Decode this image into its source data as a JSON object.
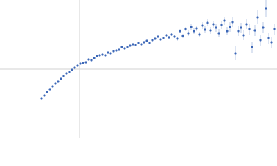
{
  "chart_data": {
    "type": "scatter",
    "color": "#3d68b8",
    "axis_color": "#d0d0d0",
    "xlim": [
      -1.15,
      2.85
    ],
    "ylim": [
      -1,
      1
    ],
    "x": [
      -0.55,
      -0.51,
      -0.47,
      -0.43,
      -0.39,
      -0.35,
      -0.31,
      -0.27,
      -0.23,
      -0.19,
      -0.15,
      -0.11,
      -0.07,
      -0.03,
      0.01,
      0.05,
      0.09,
      0.13,
      0.17,
      0.21,
      0.25,
      0.29,
      0.33,
      0.37,
      0.41,
      0.45,
      0.49,
      0.53,
      0.57,
      0.61,
      0.65,
      0.69,
      0.73,
      0.77,
      0.81,
      0.85,
      0.89,
      0.93,
      0.97,
      1.01,
      1.05,
      1.09,
      1.13,
      1.17,
      1.21,
      1.25,
      1.29,
      1.33,
      1.37,
      1.41,
      1.45,
      1.49,
      1.53,
      1.57,
      1.61,
      1.65,
      1.69,
      1.73,
      1.77,
      1.81,
      1.85,
      1.89,
      1.93,
      1.97,
      2.01,
      2.05,
      2.09,
      2.13,
      2.17,
      2.21,
      2.25,
      2.29,
      2.33,
      2.37,
      2.41,
      2.45,
      2.49,
      2.53,
      2.57,
      2.61,
      2.65,
      2.69,
      2.73,
      2.77,
      2.81
    ],
    "values": [
      -0.42,
      -0.38,
      -0.33,
      -0.29,
      -0.25,
      -0.21,
      -0.18,
      -0.14,
      -0.1,
      -0.06,
      -0.04,
      -0.01,
      0.02,
      0.05,
      0.08,
      0.09,
      0.1,
      0.14,
      0.13,
      0.16,
      0.19,
      0.2,
      0.21,
      0.2,
      0.24,
      0.23,
      0.26,
      0.27,
      0.28,
      0.32,
      0.3,
      0.32,
      0.34,
      0.36,
      0.35,
      0.38,
      0.36,
      0.39,
      0.41,
      0.38,
      0.42,
      0.44,
      0.47,
      0.43,
      0.45,
      0.49,
      0.46,
      0.5,
      0.47,
      0.44,
      0.55,
      0.48,
      0.58,
      0.52,
      0.61,
      0.55,
      0.59,
      0.5,
      0.63,
      0.57,
      0.67,
      0.56,
      0.65,
      0.6,
      0.52,
      0.64,
      0.7,
      0.55,
      0.61,
      0.68,
      0.23,
      0.55,
      0.6,
      0.49,
      0.65,
      0.58,
      0.32,
      0.56,
      0.75,
      0.42,
      0.6,
      0.88,
      0.45,
      0.39,
      0.58
    ],
    "error": [
      0.01,
      0.01,
      0.01,
      0.01,
      0.01,
      0.01,
      0.01,
      0.01,
      0.01,
      0.01,
      0.01,
      0.01,
      0.01,
      0.01,
      0.01,
      0.01,
      0.01,
      0.01,
      0.01,
      0.01,
      0.01,
      0.01,
      0.01,
      0.01,
      0.01,
      0.01,
      0.01,
      0.01,
      0.01,
      0.01,
      0.01,
      0.01,
      0.01,
      0.01,
      0.01,
      0.01,
      0.01,
      0.01,
      0.01,
      0.01,
      0.01,
      0.01,
      0.01,
      0.01,
      0.02,
      0.02,
      0.02,
      0.02,
      0.02,
      0.03,
      0.03,
      0.03,
      0.03,
      0.04,
      0.04,
      0.04,
      0.04,
      0.04,
      0.05,
      0.05,
      0.05,
      0.05,
      0.05,
      0.06,
      0.06,
      0.06,
      0.06,
      0.06,
      0.07,
      0.07,
      0.1,
      0.07,
      0.07,
      0.07,
      0.07,
      0.08,
      0.08,
      0.08,
      0.1,
      0.08,
      0.08,
      0.12,
      0.08,
      0.08,
      0.08
    ]
  }
}
